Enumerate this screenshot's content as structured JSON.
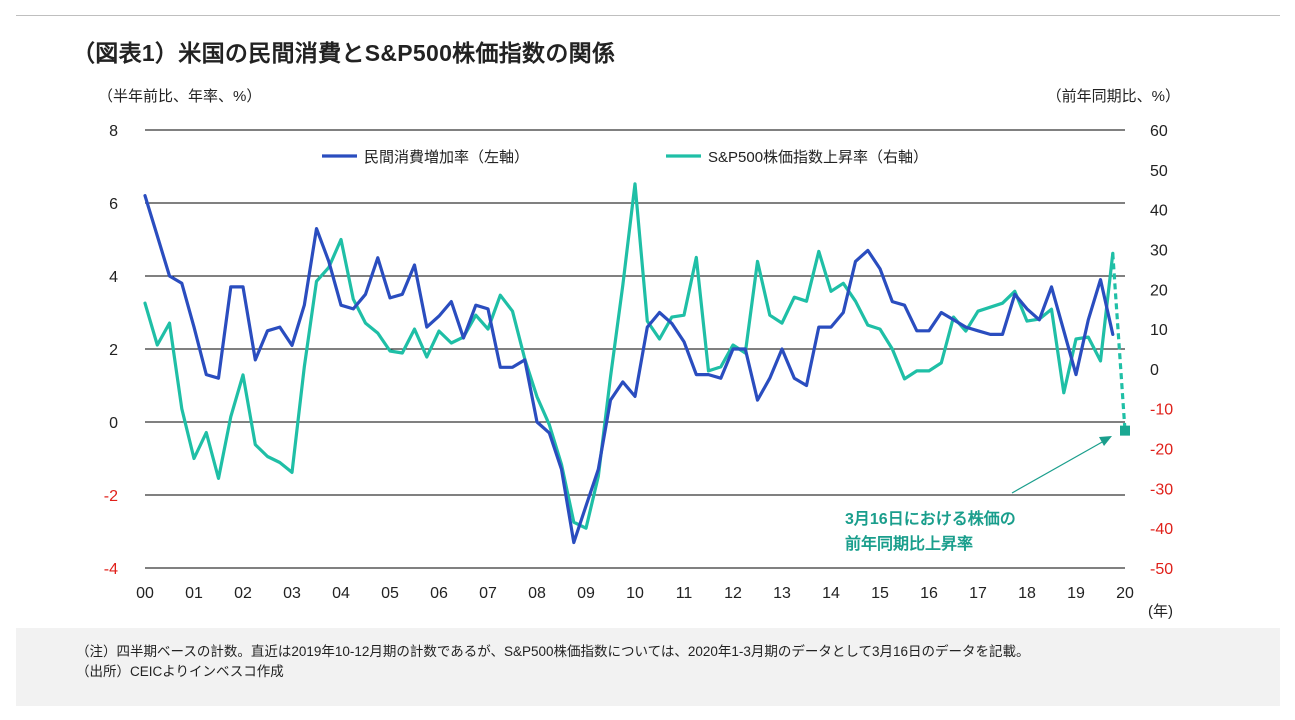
{
  "chart_data": {
    "type": "line",
    "title": "（図表1）米国の民間消費とS&P500株価指数の関係",
    "ylabel_left": "（半年前比、年率、%）",
    "ylabel_right": "（前年同期比、%）",
    "xlabel": "(年)",
    "ylim_left": [
      -4,
      8
    ],
    "ylim_right": [
      -50,
      60
    ],
    "left_ticks": [
      "8",
      "6",
      "4",
      "2",
      "0",
      "-2",
      "-4"
    ],
    "right_ticks": [
      "60",
      "50",
      "40",
      "30",
      "20",
      "10",
      "0",
      "-10",
      "-20",
      "-30",
      "-40",
      "-50"
    ],
    "x_tick_labels": [
      "00",
      "01",
      "02",
      "03",
      "04",
      "05",
      "06",
      "07",
      "08",
      "09",
      "10",
      "11",
      "12",
      "13",
      "14",
      "15",
      "16",
      "17",
      "18",
      "19",
      "20"
    ],
    "x_start": 2000.0,
    "x_step": 0.25,
    "negative_tick_color": "#e0201a",
    "series": [
      {
        "name": "民間消費増加率（左軸）",
        "axis": "left",
        "color": "#2a4dbf",
        "values": [
          6.2,
          5.1,
          4.0,
          3.8,
          2.6,
          1.3,
          1.2,
          3.7,
          3.7,
          1.7,
          2.5,
          2.6,
          2.1,
          3.2,
          5.3,
          4.4,
          3.2,
          3.1,
          3.5,
          4.5,
          3.4,
          3.5,
          4.3,
          2.6,
          2.9,
          3.3,
          2.3,
          3.2,
          3.1,
          1.5,
          1.5,
          1.7,
          0.0,
          -0.3,
          -1.3,
          -3.3,
          -2.3,
          -1.3,
          0.6,
          1.1,
          0.7,
          2.6,
          3.0,
          2.7,
          2.2,
          1.3,
          1.3,
          1.2,
          2.0,
          2.0,
          0.6,
          1.2,
          2.0,
          1.2,
          1.0,
          2.6,
          2.6,
          3.0,
          4.4,
          4.7,
          4.2,
          3.3,
          3.2,
          2.5,
          2.5,
          3.0,
          2.8,
          2.6,
          2.5,
          2.4,
          2.4,
          3.5,
          3.1,
          2.8,
          3.7,
          2.5,
          1.3,
          2.8,
          3.9,
          2.4
        ]
      },
      {
        "name": "S&P500株価指数上昇率（右軸）",
        "axis": "right",
        "color": "#1fbfa6",
        "values": [
          16.5,
          6.0,
          11.5,
          -10.0,
          -22.5,
          -16.0,
          -27.5,
          -12.0,
          -1.5,
          -19.0,
          -22.0,
          -23.5,
          -26.0,
          0.5,
          22.0,
          25.5,
          32.5,
          17.5,
          11.5,
          9.0,
          4.5,
          4.0,
          10.0,
          3.0,
          9.5,
          6.5,
          8.0,
          13.5,
          10.0,
          18.5,
          14.5,
          2.5,
          -7.0,
          -14.0,
          -24.0,
          -38.5,
          -40.0,
          -27.0,
          -2.0,
          21.0,
          46.5,
          12.0,
          7.5,
          13.0,
          13.5,
          28.0,
          -0.5,
          0.5,
          6.0,
          4.0,
          27.0,
          13.5,
          11.5,
          18.0,
          17.0,
          29.5,
          19.5,
          21.5,
          17.0,
          11.0,
          10.0,
          5.0,
          -2.5,
          -0.5,
          -0.5,
          1.5,
          13.0,
          9.5,
          14.5,
          15.5,
          16.5,
          19.5,
          12.0,
          12.5,
          15.0,
          -6.0,
          7.5,
          8.0,
          2.0,
          29.0
        ]
      }
    ],
    "forecast": {
      "axis": "right",
      "x": 2020.0,
      "value": -15.5,
      "marker": "square",
      "dashed": true
    },
    "annotation": {
      "line1": "3月16日における株価の",
      "line2": "前年同期比上昇率"
    }
  },
  "notes": {
    "note": "（注）四半期ベースの計数。直近は2019年10-12月期の計数であるが、S&P500株価指数については、2020年1-3月期のデータとして3月16日のデータを記載。",
    "source": "（出所）CEICよりインベスコ作成"
  }
}
